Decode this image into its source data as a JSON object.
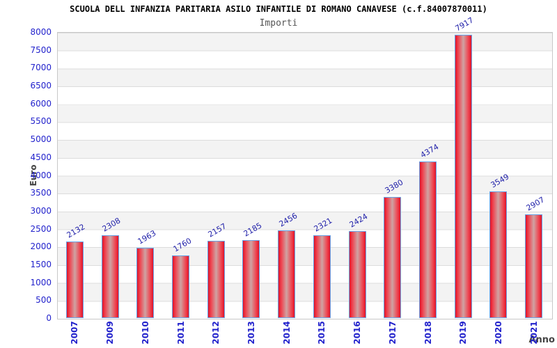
{
  "header": {
    "title": "SCUOLA DELL INFANZIA PARITARIA ASILO INFANTILE DI ROMANO CANAVESE (c.f.84007870011)",
    "subtitle": "Importi"
  },
  "chart_data": {
    "type": "bar",
    "title": "SCUOLA DELL INFANZIA PARITARIA ASILO INFANTILE DI ROMANO CANAVESE (c.f.84007870011)",
    "subtitle": "Importi",
    "xlabel": "Anno",
    "ylabel": "Euro",
    "categories": [
      "2007",
      "2009",
      "2010",
      "2011",
      "2012",
      "2013",
      "2014",
      "2015",
      "2016",
      "2017",
      "2018",
      "2019",
      "2020",
      "2021"
    ],
    "values": [
      2132,
      2308,
      1963,
      1760,
      2157,
      2185,
      2456,
      2321,
      2424,
      3380,
      4374,
      7917,
      3549,
      2907
    ],
    "ylim": [
      0,
      8000
    ],
    "ytick_step": 500,
    "legend": "none",
    "grid": "horizontal bands alternating gray/white every 500",
    "colors": {
      "bar_edge_red": "#e11328",
      "bar_mid_highlight": "#cfa3a3",
      "bar_border_blue": "#66a3e8",
      "axis_tick_label": "#2222cc",
      "value_label": "#2222aa",
      "band_gray": "#f3f3f3",
      "grid_line": "#dcdcdc",
      "plot_border": "#c8c8c8",
      "axis_title": "#444444",
      "subtitle": "#555555",
      "title": "#000000"
    }
  }
}
